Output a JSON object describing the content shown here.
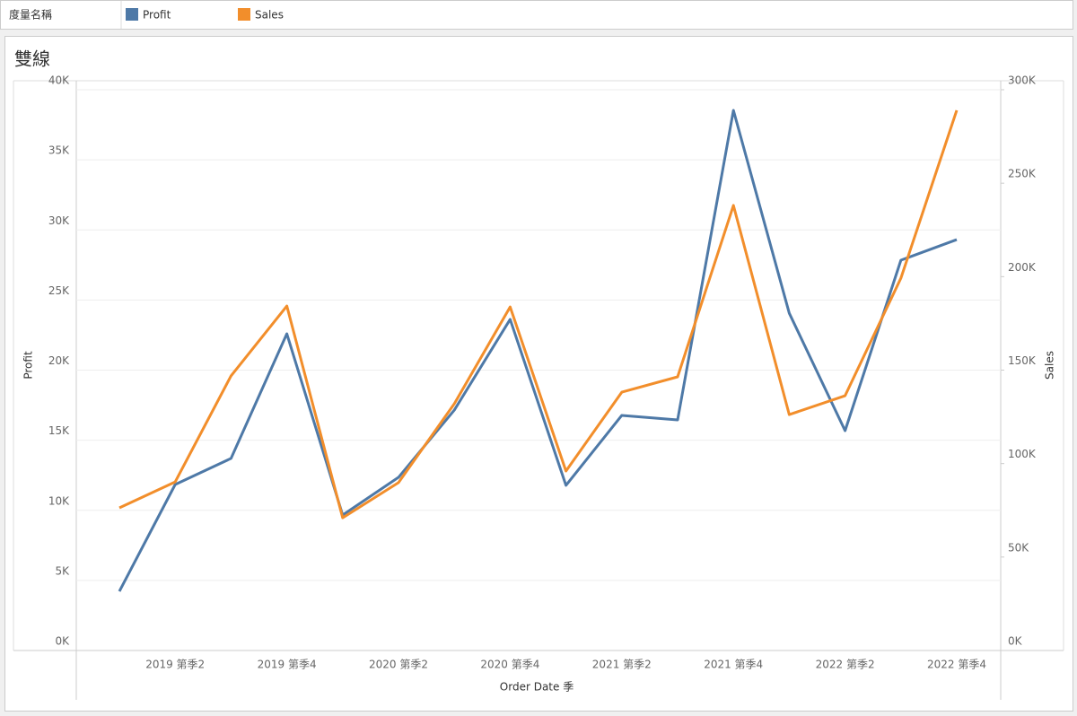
{
  "chart_data": {
    "type": "line",
    "title": "雙線",
    "legend_title": "度量名稱",
    "x_label": "Order Date 季",
    "y_label": "Profit",
    "y2_label": "Sales",
    "categories": [
      null,
      "2019 第季2",
      null,
      "2019 第季4",
      null,
      "2020 第季2",
      null,
      "2020 第季4",
      null,
      "2021 第季2",
      null,
      "2021 第季4",
      null,
      "2022 第季2",
      null,
      "2022 第季4"
    ],
    "series": [
      {
        "name": "Profit",
        "color": "#4e79a7",
        "axis": "y",
        "values": [
          4220,
          11840,
          13700,
          22590,
          9660,
          12350,
          17150,
          23620,
          11780,
          16770,
          16450,
          38530,
          24060,
          15680,
          27840,
          29310
        ]
      },
      {
        "name": "Sales",
        "color": "#f28e2b",
        "axis": "y2",
        "values": [
          76300,
          90200,
          146900,
          184300,
          71000,
          89800,
          132000,
          183800,
          96000,
          138200,
          146400,
          238100,
          126200,
          136300,
          199200,
          289000
        ]
      }
    ],
    "ylim": [
      0,
      40000
    ],
    "yticks": [
      {
        "value": 0,
        "label": "0K"
      },
      {
        "value": 5000,
        "label": "5K"
      },
      {
        "value": 10000,
        "label": "10K"
      },
      {
        "value": 15000,
        "label": "15K"
      },
      {
        "value": 20000,
        "label": "20K"
      },
      {
        "value": 25000,
        "label": "25K"
      },
      {
        "value": 30000,
        "label": "30K"
      },
      {
        "value": 35000,
        "label": "35K"
      },
      {
        "value": 40000,
        "label": "40K"
      }
    ],
    "y2lim": [
      0,
      300000
    ],
    "y2ticks": [
      {
        "value": 0,
        "label": "0K"
      },
      {
        "value": 50000,
        "label": "50K"
      },
      {
        "value": 100000,
        "label": "100K"
      },
      {
        "value": 150000,
        "label": "150K"
      },
      {
        "value": 200000,
        "label": "200K"
      },
      {
        "value": 250000,
        "label": "250K"
      },
      {
        "value": 300000,
        "label": "300K"
      }
    ],
    "grid": true
  }
}
